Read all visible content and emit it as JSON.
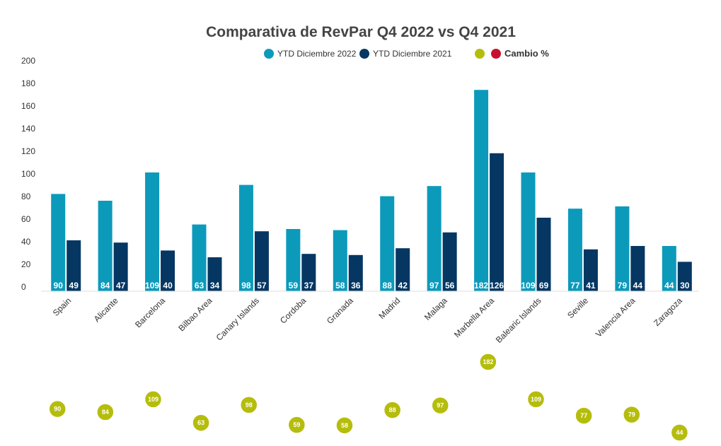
{
  "chart_data": {
    "type": "bar",
    "title": "Comparativa de RevPar Q4 2022 vs Q4 2021",
    "categories": [
      "Spain",
      "Alicante",
      "Barcelona",
      "Bilbao Area",
      "Canary Islands",
      "Cordoba",
      "Granada",
      "Madrid",
      "Malaga",
      "Marbella Area",
      "Balearic Islands",
      "Seville",
      "Valencia Area",
      "Zaragoza"
    ],
    "series": [
      {
        "name": "YTD Diciembre 2022",
        "color": "#0c9abb",
        "values": [
          90,
          84,
          109,
          63,
          98,
          59,
          58,
          88,
          97,
          182,
          109,
          77,
          79,
          44
        ]
      },
      {
        "name": "YTD Diciembre 2021",
        "color": "#063763",
        "values": [
          49,
          47,
          40,
          34,
          57,
          37,
          36,
          42,
          56,
          126,
          69,
          41,
          44,
          30
        ]
      }
    ],
    "bar_heights_axis": [
      86,
      80,
      105,
      59,
      94,
      55,
      54,
      84,
      93,
      178,
      105,
      73,
      75,
      40
    ],
    "bar_heights_axis_2021": [
      45,
      43,
      36,
      30,
      53,
      33,
      32,
      38,
      52,
      122,
      65,
      37,
      40,
      26
    ],
    "change_series": {
      "name": "Cambio %",
      "color": "#b5bd0c",
      "values": [
        90,
        84,
        109,
        63,
        98,
        59,
        58,
        88,
        97,
        182,
        109,
        77,
        79,
        44
      ]
    },
    "legend": [
      {
        "name": "YTD Diciembre 2022",
        "color": "#0c9abb"
      },
      {
        "name": "YTD Diciembre 2021",
        "color": "#063763"
      },
      {
        "name": "",
        "color": "#b5bd0c"
      },
      {
        "name": "Cambio %",
        "color": "#c8102e"
      }
    ],
    "ylim": [
      0,
      200
    ],
    "yticks": [
      0,
      20,
      40,
      60,
      80,
      100,
      120,
      140,
      160,
      180,
      200
    ],
    "xlabel": "",
    "ylabel": "",
    "grid": false,
    "legend_position": "top-center"
  }
}
